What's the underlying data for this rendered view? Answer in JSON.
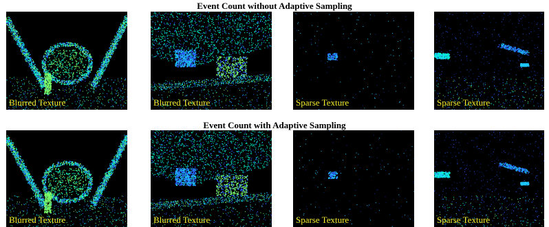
{
  "rows": [
    {
      "title": "Event Count without Adaptive Sampling",
      "panels": [
        {
          "caption": "Blurred Texture",
          "scene": "street-car"
        },
        {
          "caption": "Blurred Texture",
          "scene": "trees-cars"
        },
        {
          "caption": "Sparse Texture",
          "scene": "dark-car"
        },
        {
          "caption": "Sparse Texture",
          "scene": "night-road"
        }
      ]
    },
    {
      "title": "Event Count with Adaptive Sampling",
      "panels": [
        {
          "caption": "Blurred Texture",
          "scene": "street-car"
        },
        {
          "caption": "Blurred Texture",
          "scene": "trees-cars"
        },
        {
          "caption": "Sparse Texture",
          "scene": "dark-car"
        },
        {
          "caption": "Sparse Texture",
          "scene": "night-road"
        }
      ]
    }
  ],
  "colors": {
    "background": "#000000",
    "caption": "#f2ea2c",
    "event_palette": [
      "#00ffd0",
      "#1ec8ff",
      "#2a5cff",
      "#7cff6a",
      "#0b2a8a"
    ]
  }
}
